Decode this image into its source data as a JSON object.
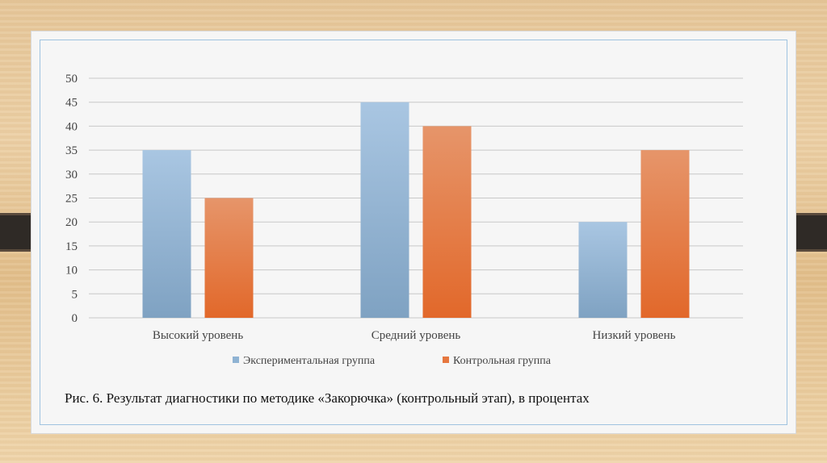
{
  "chart_data": {
    "type": "bar",
    "categories": [
      "Высокий уровень",
      "Средний уровень",
      "Низкий уровень"
    ],
    "series": [
      {
        "name": "Экспериментальная группа",
        "values": [
          35,
          45,
          20
        ],
        "color": "#8fb3d3"
      },
      {
        "name": "Контрольная группа",
        "values": [
          25,
          40,
          35
        ],
        "color": "#e6773f"
      }
    ],
    "ylim": [
      0,
      50
    ],
    "yticks": [
      0,
      5,
      10,
      15,
      20,
      25,
      30,
      35,
      40,
      45,
      50
    ],
    "grid": true,
    "legend_position": "bottom",
    "xlabel": "",
    "ylabel": ""
  },
  "caption": "Рис. 6. Результат диагностики по методике «Закорючка» (контрольный этап), в процентах"
}
